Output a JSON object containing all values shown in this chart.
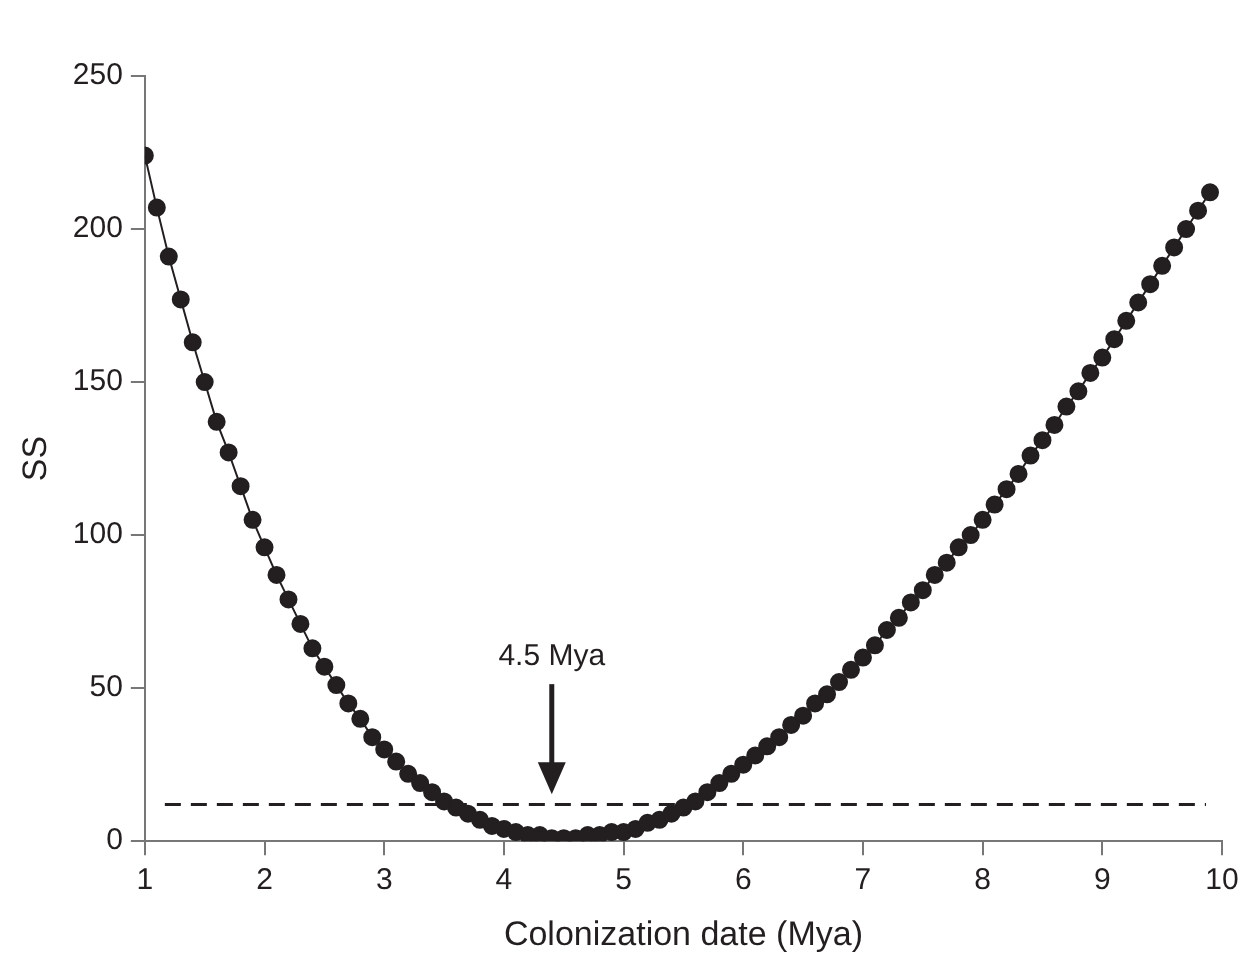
{
  "chart_data": {
    "type": "line",
    "xlabel": "Colonization date (Mya)",
    "ylabel": "SS",
    "x": [
      1.0,
      1.1,
      1.2,
      1.3,
      1.4,
      1.5,
      1.6,
      1.7,
      1.8,
      1.9,
      2.0,
      2.1,
      2.2,
      2.3,
      2.4,
      2.5,
      2.6,
      2.7,
      2.8,
      2.9,
      3.0,
      3.1,
      3.2,
      3.3,
      3.4,
      3.5,
      3.6,
      3.7,
      3.8,
      3.9,
      4.0,
      4.1,
      4.2,
      4.3,
      4.4,
      4.5,
      4.6,
      4.7,
      4.8,
      4.9,
      5.0,
      5.1,
      5.2,
      5.3,
      5.4,
      5.5,
      5.6,
      5.7,
      5.8,
      5.9,
      6.0,
      6.1,
      6.2,
      6.3,
      6.4,
      6.5,
      6.6,
      6.7,
      6.8,
      6.9,
      7.0,
      7.1,
      7.2,
      7.3,
      7.4,
      7.5,
      7.6,
      7.7,
      7.8,
      7.9,
      8.0,
      8.1,
      8.2,
      8.3,
      8.4,
      8.5,
      8.6,
      8.7,
      8.8,
      8.9,
      9.0,
      9.1,
      9.2,
      9.3,
      9.4,
      9.5,
      9.6,
      9.7,
      9.8,
      9.9
    ],
    "series": [
      {
        "color": "#231f20",
        "values": [
          224,
          207,
          191,
          177,
          163,
          150,
          137,
          127,
          116,
          105,
          96,
          87,
          79,
          71,
          63,
          57,
          51,
          45,
          40,
          34,
          30,
          26,
          22,
          19,
          16,
          13,
          11,
          9,
          7,
          5,
          4,
          3,
          2,
          2,
          1,
          1,
          1,
          2,
          2,
          3,
          3,
          4,
          6,
          7,
          9,
          11,
          13,
          16,
          19,
          22,
          25,
          28,
          31,
          34,
          38,
          41,
          45,
          48,
          52,
          56,
          60,
          64,
          69,
          73,
          78,
          82,
          87,
          91,
          96,
          100,
          105,
          110,
          115,
          120,
          126,
          131,
          136,
          142,
          147,
          153,
          158,
          164,
          170,
          176,
          182,
          188,
          194,
          200,
          206,
          212
        ]
      }
    ],
    "xlim": [
      1,
      10
    ],
    "xticks": [
      1,
      2,
      3,
      4,
      5,
      6,
      7,
      8,
      9,
      10
    ],
    "ylim": [
      0,
      250
    ],
    "yticks": [
      0,
      50,
      100,
      150,
      200,
      250
    ],
    "ref_lines": [
      {
        "axis": "y",
        "value": 12,
        "color": "#231f20",
        "line_style": "dashed"
      }
    ],
    "annotations": [
      "4.5 Mya"
    ],
    "grid": false,
    "legend": false,
    "marker": "circle",
    "line_style": "solid"
  }
}
